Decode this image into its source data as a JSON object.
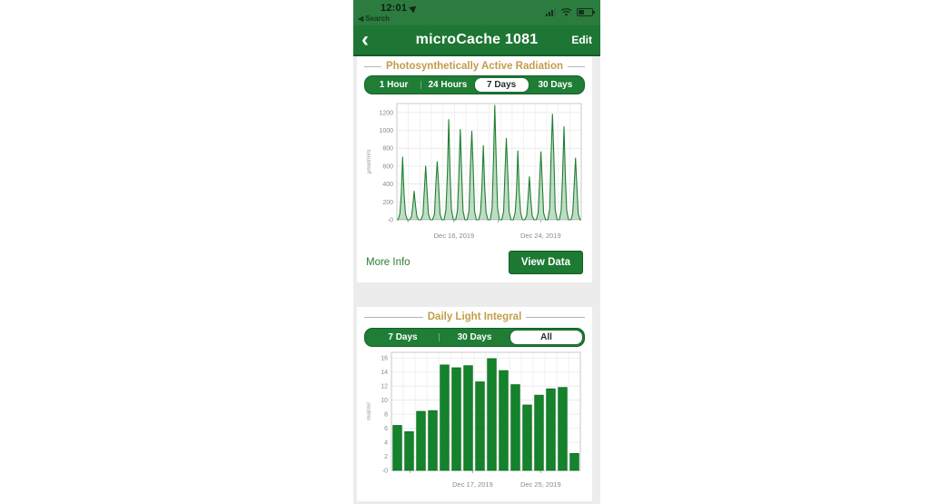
{
  "status_bar": {
    "time": "12:01",
    "back_app": "◀ Search"
  },
  "nav": {
    "back": "‹",
    "title": "microCache 1081",
    "edit": "Edit"
  },
  "par_section": {
    "title": "Photosynthetically Active Radiation",
    "ranges": [
      "1 Hour",
      "24 Hours",
      "7 Days",
      "30 Days"
    ],
    "selected_range": "7 Days",
    "more_info": "More Info",
    "view_data": "View Data"
  },
  "dli_section": {
    "title": "Daily Light Integral",
    "ranges": [
      "7 Days",
      "30 Days",
      "All"
    ],
    "selected_range": "All"
  },
  "colors": {
    "status_bar_green": "#2b7c3e",
    "nav_bar_green": "#1e7634",
    "segmented_green": "#1f7d35",
    "gold_title": "#c29d4a",
    "link_green": "#2e7d32",
    "app_background": "#ececec"
  },
  "chart_data": [
    {
      "type": "line",
      "title": "Photosynthetically Active Radiation",
      "ylabel": "μmol/m²s",
      "ylim": [
        0,
        1300
      ],
      "ytick_values": [
        1200,
        1000,
        800,
        600,
        400,
        200,
        0
      ],
      "ytick_labels": [
        "1200",
        "1000",
        "800",
        "600",
        "400",
        "200",
        "-0"
      ],
      "day_peaks": [
        700,
        320,
        600,
        650,
        1120,
        1010,
        990,
        830,
        1280,
        910,
        770,
        480,
        760,
        1180,
        1040,
        690
      ],
      "xlabels": [
        {
          "text": "Dec 16, 2019",
          "pos": 0.31
        },
        {
          "text": "Dec 24, 2019",
          "pos": 0.78
        }
      ],
      "xtick_pos": [
        0.06,
        0.31,
        0.55,
        0.78
      ],
      "grid": true,
      "line_color": "#1d8030",
      "fill_color": "rgba(34,128,48,0.28)"
    },
    {
      "type": "bar",
      "title": "Daily Light Integral",
      "ylabel": "mol/m²",
      "ylim": [
        0,
        16.8
      ],
      "ytick_values": [
        16,
        14,
        12,
        10,
        8,
        6,
        4,
        2,
        0
      ],
      "ytick_labels": [
        "16",
        "14",
        "12",
        "10",
        "8",
        "6",
        "4",
        "2",
        "-0"
      ],
      "values": [
        6.4,
        5.5,
        8.4,
        8.5,
        15.0,
        14.6,
        14.9,
        12.6,
        15.9,
        14.2,
        12.2,
        9.3,
        10.7,
        11.6,
        11.8,
        2.4
      ],
      "xlabels": [
        {
          "text": "Dec 17, 2019",
          "pos": 0.43
        },
        {
          "text": "Dec 25, 2019",
          "pos": 0.79
        }
      ],
      "xtick_pos": [
        0.1,
        0.43,
        0.79
      ],
      "grid": true,
      "bar_color": "#14832b",
      "bar_stroke": "#0d6b20"
    }
  ]
}
